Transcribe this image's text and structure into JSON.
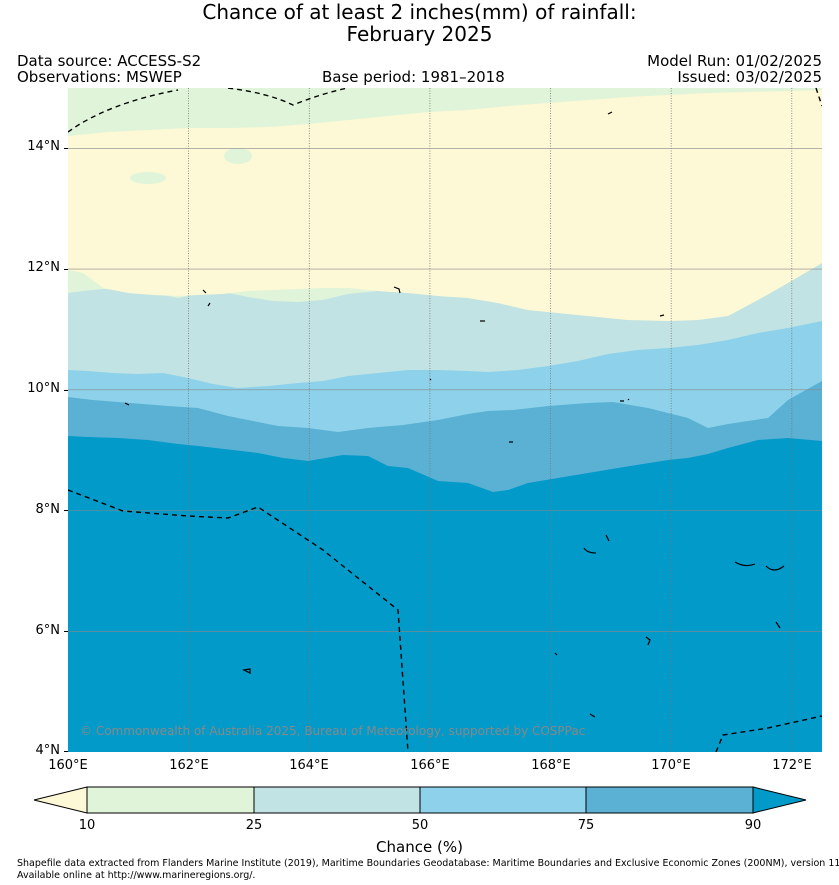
{
  "title_line1": "Chance of at least 2 inches(mm) of rainfall:",
  "title_line2": "February 2025",
  "header": {
    "data_source": "Data source: ACCESS-S2",
    "observations": "Observations: MSWEP",
    "base_period": "Base period: 1981–2018",
    "model_run": "Model Run: 01/02/2025",
    "issued": "Issued: 03/02/2025"
  },
  "map": {
    "lat_labels": [
      "14°N",
      "12°N",
      "10°N",
      "8°N",
      "6°N",
      "4°N"
    ],
    "lon_labels": [
      "160°E",
      "162°E",
      "164°E",
      "166°E",
      "168°E",
      "170°E",
      "172°E"
    ],
    "copyright": "© Commonwealth of Australia 2025, Bureau of Meteorology, supported by COSPPac",
    "lat_range": [
      4,
      15
    ],
    "lon_range": [
      160,
      172.5
    ]
  },
  "colorbar": {
    "title": "Chance (%)",
    "ticks": [
      "10",
      "25",
      "50",
      "75",
      "90"
    ],
    "colors": {
      "lt10": "#fdf8d6",
      "10_25": "#dff4d9",
      "25_50": "#c1e3e3",
      "50_75": "#8dd2ea",
      "75_90": "#5ab1d3",
      "gt90": "#019ac9"
    }
  },
  "footer": {
    "line1": "Shapefile data extracted from Flanders Marine Institute (2019), Maritime Boundaries Geodatabase: Maritime Boundaries and Exclusive Economic Zones (200NM), version 11.",
    "line2": "Available online at http://www.marineregions.org/."
  }
}
